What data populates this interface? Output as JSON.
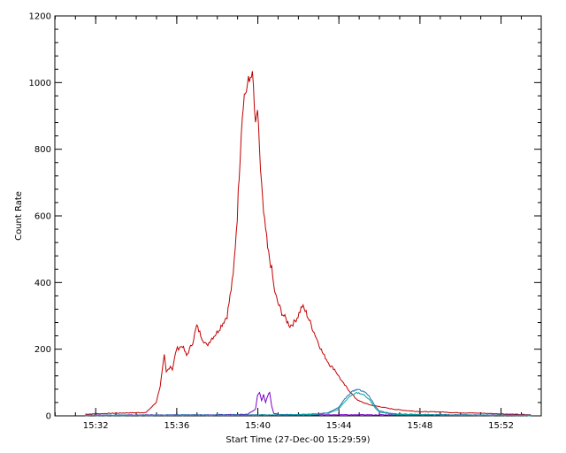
{
  "chart_data": {
    "type": "line",
    "xlabel": "Start Time (27-Dec-00 15:29:59)",
    "ylabel": "Count Rate",
    "xlim": [
      0.0,
      24.0
    ],
    "ylim": [
      0,
      1200
    ],
    "x_ticks": [
      {
        "value": 2.0167,
        "label": "15:32"
      },
      {
        "value": 6.0167,
        "label": "15:36"
      },
      {
        "value": 10.0167,
        "label": "15:40"
      },
      {
        "value": 14.0167,
        "label": "15:44"
      },
      {
        "value": 18.0167,
        "label": "15:48"
      },
      {
        "value": 22.0167,
        "label": "15:52"
      }
    ],
    "y_ticks": [
      0,
      200,
      400,
      600,
      800,
      1000,
      1200
    ],
    "grid": false,
    "series": [
      {
        "color": "#c00000",
        "x": [
          1.5,
          3.0,
          4.5,
          5.0,
          5.2,
          5.4,
          5.5,
          5.7,
          5.8,
          6.0,
          6.3,
          6.5,
          6.8,
          7.0,
          7.3,
          7.5,
          7.7,
          8.0,
          8.3,
          8.5,
          8.8,
          9.0,
          9.2,
          9.3,
          9.5,
          9.6,
          9.7,
          9.8,
          9.9,
          10.0,
          10.1,
          10.2,
          10.3,
          10.4,
          10.5,
          10.6,
          10.7,
          10.8,
          10.9,
          11.0,
          11.2,
          11.4,
          11.6,
          11.8,
          12.0,
          12.2,
          12.4,
          12.6,
          12.8,
          13.0,
          13.2,
          13.4,
          13.6,
          13.8,
          14.0,
          14.2,
          14.4,
          14.6,
          14.8,
          15.0,
          15.3,
          15.6,
          16.0,
          16.5,
          17.0,
          17.5,
          18.0,
          18.5,
          19.0,
          19.5,
          20.0,
          21.0,
          22.0,
          23.0,
          23.5
        ],
        "y": [
          5,
          8,
          10,
          40,
          90,
          180,
          130,
          150,
          140,
          200,
          210,
          180,
          220,
          270,
          230,
          210,
          230,
          250,
          280,
          300,
          420,
          600,
          860,
          950,
          990,
          1000,
          1040,
          980,
          860,
          920,
          780,
          700,
          600,
          560,
          500,
          470,
          440,
          390,
          360,
          340,
          310,
          290,
          270,
          280,
          300,
          330,
          310,
          280,
          250,
          220,
          190,
          170,
          150,
          140,
          120,
          100,
          85,
          70,
          55,
          45,
          38,
          32,
          28,
          22,
          18,
          15,
          13,
          12,
          12,
          10,
          9,
          8,
          6,
          4,
          3
        ]
      },
      {
        "color": "#7a00c8",
        "x": [
          1.5,
          8.0,
          9.5,
          9.9,
          10.0,
          10.1,
          10.2,
          10.3,
          10.4,
          10.5,
          10.6,
          10.7,
          10.8,
          11.0,
          12.0,
          14.0,
          16.0,
          18.0,
          22.0,
          23.5
        ],
        "y": [
          2,
          3,
          5,
          20,
          60,
          70,
          45,
          65,
          40,
          60,
          70,
          30,
          8,
          4,
          3,
          3,
          3,
          3,
          2,
          2
        ]
      },
      {
        "color": "#2a6ea8",
        "x": [
          1.5,
          10.0,
          12.0,
          13.0,
          13.5,
          14.0,
          14.3,
          14.6,
          14.9,
          15.2,
          15.5,
          15.8,
          16.0,
          16.5,
          17.0,
          18.0,
          20.0,
          23.5
        ],
        "y": [
          2,
          3,
          4,
          6,
          10,
          25,
          50,
          70,
          80,
          75,
          60,
          30,
          15,
          8,
          5,
          4,
          3,
          2
        ]
      },
      {
        "color": "#00a8a0",
        "x": [
          1.5,
          10.0,
          12.0,
          13.0,
          13.5,
          14.0,
          14.3,
          14.6,
          14.9,
          15.2,
          15.5,
          15.8,
          16.0,
          16.5,
          17.0,
          18.0,
          20.0,
          23.5
        ],
        "y": [
          1,
          2,
          3,
          5,
          8,
          20,
          42,
          60,
          70,
          65,
          50,
          25,
          12,
          6,
          4,
          3,
          2,
          1
        ]
      }
    ]
  }
}
